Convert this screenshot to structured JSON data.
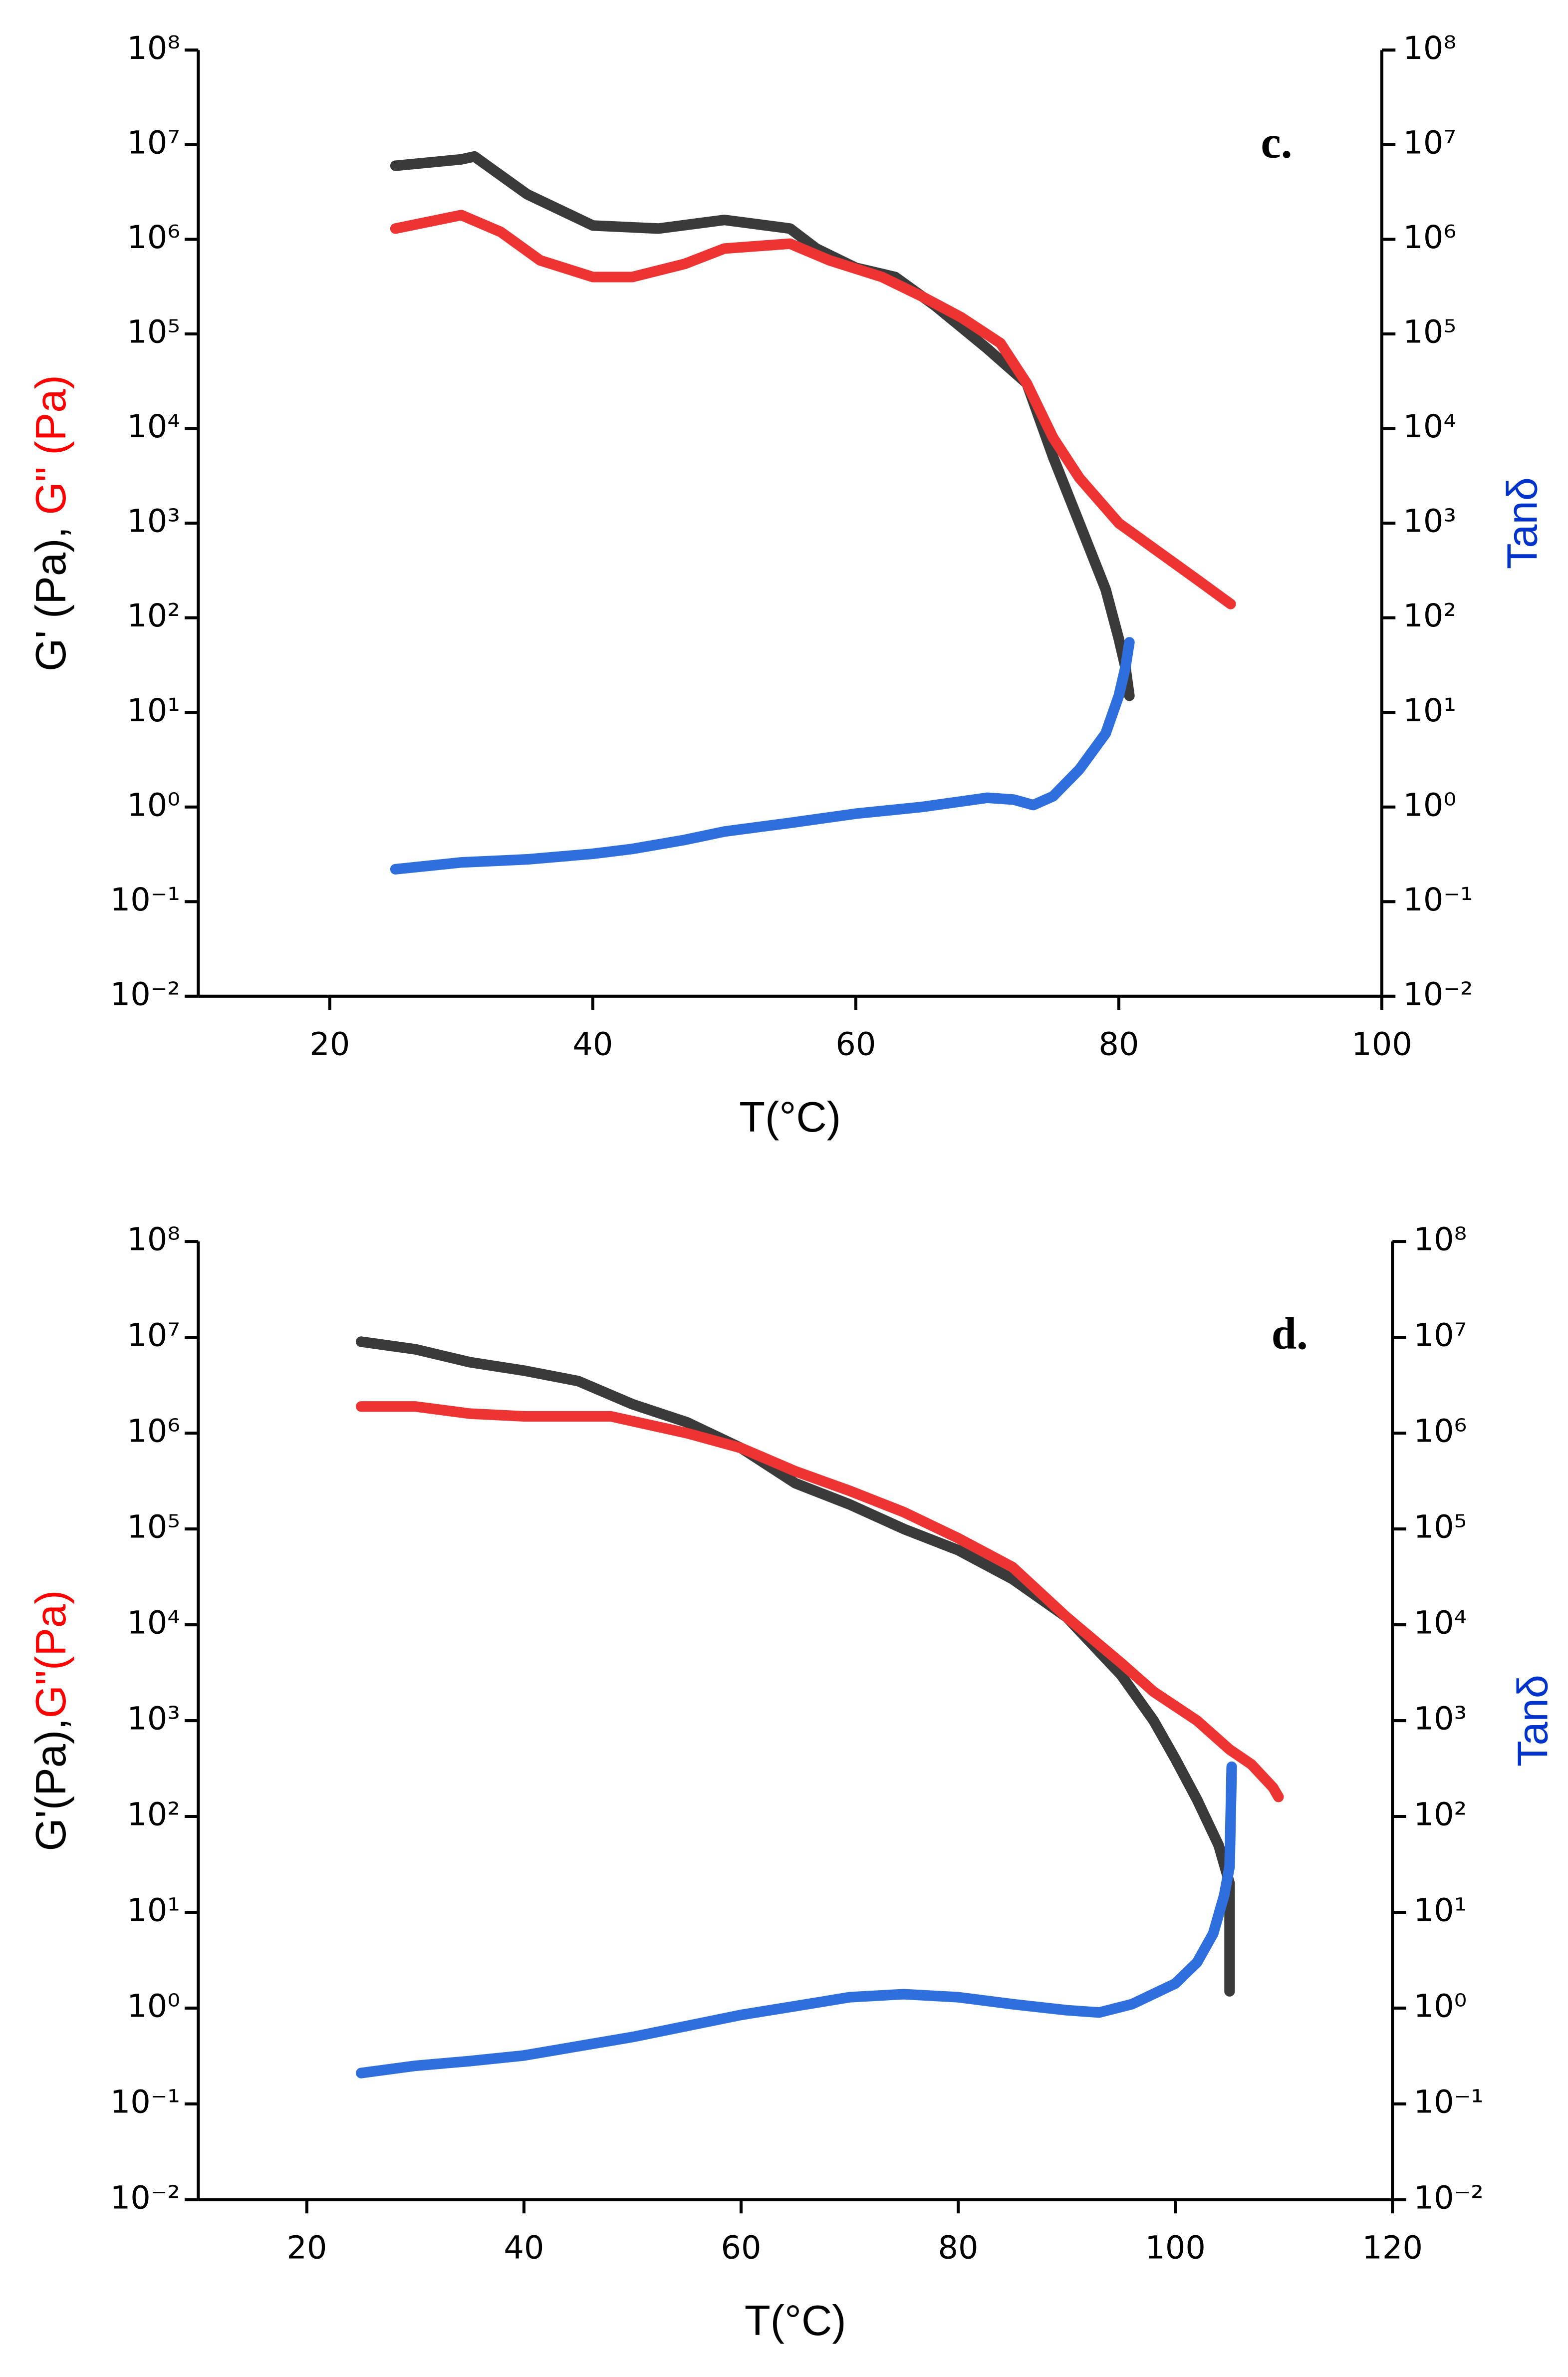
{
  "chart_data": [
    {
      "type": "scatter",
      "panel_label": "c.",
      "x_label": "T(°C)",
      "y_label_parts": [
        {
          "text": "G' (Pa), ",
          "color": "#000000"
        },
        {
          "text": "G\" (Pa)",
          "color": "#ff0000"
        }
      ],
      "y2_label": "Tanδ",
      "y2_label_color": "#0033cc",
      "xlim": [
        10,
        100
      ],
      "xticks": [
        20,
        40,
        60,
        80,
        100
      ],
      "ylog": true,
      "ylim": [
        0.01,
        100000000
      ],
      "y2lim": [
        0.01,
        100000000
      ],
      "yticks": [
        {
          "value": 0.01,
          "label": "10⁻²"
        },
        {
          "value": 0.1,
          "label": "10⁻¹"
        },
        {
          "value": 1,
          "label": "10⁰"
        },
        {
          "value": 10,
          "label": "10¹"
        },
        {
          "value": 100,
          "label": "10²"
        },
        {
          "value": 1000,
          "label": "10³"
        },
        {
          "value": 10000,
          "label": "10⁴"
        },
        {
          "value": 100000,
          "label": "10⁵"
        },
        {
          "value": 1000000,
          "label": "10⁶"
        },
        {
          "value": 10000000,
          "label": "10⁷"
        },
        {
          "value": 100000000,
          "label": "10⁸"
        }
      ],
      "y2ticks": [
        {
          "value": 0.01,
          "label": "10⁻²"
        },
        {
          "value": 0.1,
          "label": "10⁻¹"
        },
        {
          "value": 1,
          "label": "10⁰"
        },
        {
          "value": 10,
          "label": "10¹"
        },
        {
          "value": 100,
          "label": "10²"
        },
        {
          "value": 1000,
          "label": "10³"
        },
        {
          "value": 10000,
          "label": "10⁴"
        },
        {
          "value": 100000,
          "label": "10⁵"
        },
        {
          "value": 1000000,
          "label": "10⁶"
        },
        {
          "value": 10000000,
          "label": "10⁷"
        },
        {
          "value": 100000000,
          "label": "10⁸"
        }
      ],
      "series": [
        {
          "color": "#3a3a3a",
          "x": [
            25,
            30,
            31,
            35,
            40,
            45,
            50,
            55,
            57,
            60,
            63,
            66,
            70,
            73,
            75,
            77,
            79,
            80,
            80.5,
            80.8
          ],
          "values": [
            6000000,
            7000000,
            7500000,
            3000000,
            1400000,
            1300000,
            1600000,
            1300000,
            800000,
            500000,
            400000,
            200000,
            70000,
            30000,
            5000,
            1000,
            200,
            60,
            30,
            15
          ]
        },
        {
          "color": "#ee3333",
          "x": [
            25,
            30,
            33,
            36,
            40,
            43,
            47,
            50,
            55,
            58,
            62,
            65,
            68,
            71,
            73,
            75,
            77,
            80,
            83,
            86,
            88.5
          ],
          "values": [
            1300000,
            1800000,
            1200000,
            600000,
            400000,
            400000,
            550000,
            800000,
            900000,
            600000,
            400000,
            250000,
            150000,
            80000,
            30000,
            8000,
            3000,
            1000,
            500,
            250,
            140
          ]
        },
        {
          "color": "#2f6fdd",
          "axis": "y2",
          "x": [
            25,
            30,
            35,
            40,
            43,
            47,
            50,
            55,
            60,
            65,
            70,
            72,
            73.5,
            75,
            77,
            79,
            80,
            80.5,
            80.8
          ],
          "values": [
            0.22,
            0.26,
            0.28,
            0.32,
            0.36,
            0.45,
            0.55,
            0.68,
            0.85,
            1.0,
            1.25,
            1.2,
            1.05,
            1.3,
            2.5,
            6,
            15,
            30,
            55
          ]
        }
      ]
    },
    {
      "type": "scatter",
      "panel_label": "d.",
      "x_label": "T(°C)",
      "y_label_parts": [
        {
          "text": "G'(Pa),",
          "color": "#000000"
        },
        {
          "text": "G\"(Pa)",
          "color": "#ff0000"
        }
      ],
      "y2_label": "Tanδ",
      "y2_label_color": "#0033cc",
      "xlim": [
        10,
        120
      ],
      "xticks": [
        20,
        40,
        60,
        80,
        100,
        120
      ],
      "ylog": true,
      "ylim": [
        0.01,
        100000000
      ],
      "y2lim": [
        0.01,
        100000000
      ],
      "yticks": [
        {
          "value": 0.01,
          "label": "10⁻²"
        },
        {
          "value": 0.1,
          "label": "10⁻¹"
        },
        {
          "value": 1,
          "label": "10⁰"
        },
        {
          "value": 10,
          "label": "10¹"
        },
        {
          "value": 100,
          "label": "10²"
        },
        {
          "value": 1000,
          "label": "10³"
        },
        {
          "value": 10000,
          "label": "10⁴"
        },
        {
          "value": 100000,
          "label": "10⁵"
        },
        {
          "value": 1000000,
          "label": "10⁶"
        },
        {
          "value": 10000000,
          "label": "10⁷"
        },
        {
          "value": 100000000,
          "label": "10⁸"
        }
      ],
      "y2ticks": [
        {
          "value": 0.01,
          "label": "10⁻²"
        },
        {
          "value": 0.1,
          "label": "10⁻¹"
        },
        {
          "value": 1,
          "label": "10⁰"
        },
        {
          "value": 10,
          "label": "10¹"
        },
        {
          "value": 100,
          "label": "10²"
        },
        {
          "value": 1000,
          "label": "10³"
        },
        {
          "value": 10000,
          "label": "10⁴"
        },
        {
          "value": 100000,
          "label": "10⁵"
        },
        {
          "value": 1000000,
          "label": "10⁶"
        },
        {
          "value": 10000000,
          "label": "10⁷"
        },
        {
          "value": 100000000,
          "label": "10⁸"
        }
      ],
      "series": [
        {
          "color": "#3a3a3a",
          "x": [
            25,
            30,
            35,
            40,
            45,
            50,
            55,
            60,
            65,
            70,
            75,
            80,
            85,
            90,
            95,
            98,
            100,
            102,
            104,
            105,
            105
          ],
          "values": [
            9000000,
            7500000,
            5500000,
            4500000,
            3500000,
            2000000,
            1300000,
            700000,
            300000,
            180000,
            100000,
            60000,
            30000,
            12000,
            3000,
            1000,
            400,
            150,
            50,
            20,
            1.5
          ]
        },
        {
          "color": "#ee3333",
          "x": [
            25,
            30,
            35,
            40,
            48,
            55,
            60,
            65,
            70,
            75,
            80,
            85,
            90,
            95,
            98,
            102,
            105,
            107,
            109,
            109.5
          ],
          "values": [
            1900000,
            1900000,
            1600000,
            1500000,
            1500000,
            1000000,
            700000,
            400000,
            250000,
            150000,
            80000,
            40000,
            12000,
            4000,
            2000,
            1000,
            500,
            350,
            200,
            160
          ]
        },
        {
          "color": "#2f6fdd",
          "axis": "y2",
          "x": [
            25,
            30,
            35,
            40,
            45,
            50,
            55,
            60,
            65,
            70,
            75,
            80,
            85,
            90,
            93,
            96,
            100,
            102,
            103.5,
            104.5,
            105,
            105.2
          ],
          "values": [
            0.21,
            0.25,
            0.28,
            0.32,
            0.4,
            0.5,
            0.65,
            0.85,
            1.05,
            1.3,
            1.4,
            1.3,
            1.1,
            0.95,
            0.9,
            1.1,
            1.8,
            3,
            6,
            15,
            30,
            330
          ]
        }
      ]
    }
  ]
}
